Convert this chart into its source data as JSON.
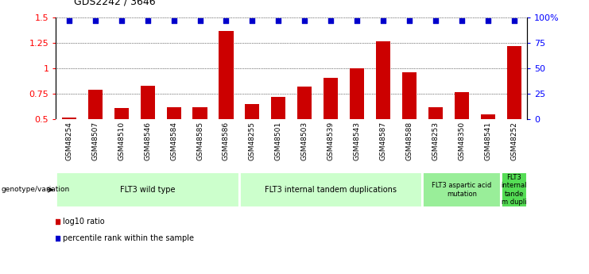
{
  "title": "GDS2242 / 3646",
  "samples": [
    "GSM48254",
    "GSM48507",
    "GSM48510",
    "GSM48546",
    "GSM48584",
    "GSM48585",
    "GSM48586",
    "GSM48255",
    "GSM48501",
    "GSM48503",
    "GSM48539",
    "GSM48543",
    "GSM48587",
    "GSM48588",
    "GSM48253",
    "GSM48350",
    "GSM48541",
    "GSM48252"
  ],
  "log10_ratio": [
    0.52,
    0.79,
    0.61,
    0.83,
    0.62,
    0.62,
    1.37,
    0.65,
    0.72,
    0.82,
    0.91,
    1.0,
    1.27,
    0.96,
    0.62,
    0.77,
    0.55,
    1.22
  ],
  "percentile_y": [
    1.475,
    1.475,
    1.475,
    1.475,
    1.475,
    1.475,
    1.475,
    1.475,
    1.475,
    1.475,
    1.475,
    1.475,
    1.475,
    1.475,
    1.475,
    1.475,
    1.475,
    1.475
  ],
  "bar_color": "#cc0000",
  "dot_color": "#0000cc",
  "ylim": [
    0.5,
    1.5
  ],
  "yticks_left": [
    0.5,
    0.75,
    1.0,
    1.25,
    1.5
  ],
  "yticks_left_labels": [
    "0.5",
    "0.75",
    "1",
    "1.25",
    "1.5"
  ],
  "yticks_right_labels": [
    "0",
    "25",
    "50",
    "75",
    "100%"
  ],
  "groups": [
    {
      "label": "FLT3 wild type",
      "start": 0,
      "end": 7,
      "color": "#ccffcc"
    },
    {
      "label": "FLT3 internal tandem duplications",
      "start": 7,
      "end": 14,
      "color": "#ccffcc"
    },
    {
      "label": "FLT3 aspartic acid\nmutation",
      "start": 14,
      "end": 17,
      "color": "#99ee99"
    },
    {
      "label": "FLT3\ninternal\ntande\nm dupli",
      "start": 17,
      "end": 18,
      "color": "#55dd55"
    }
  ],
  "bg_color": "#d0d0d0",
  "fig_width": 7.41,
  "fig_height": 3.45
}
